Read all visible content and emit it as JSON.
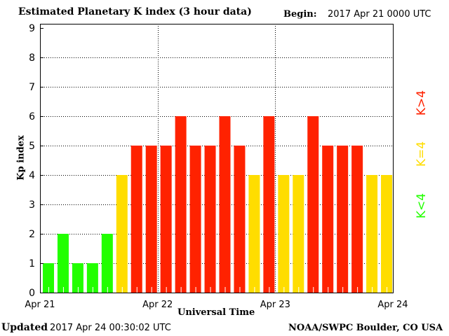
{
  "chart_data": {
    "type": "bar",
    "title": "Estimated Planetary K index (3 hour data)",
    "begin_label": "Begin:",
    "begin_value": "2017 Apr 21 0000 UTC",
    "xlabel": "Universal Time",
    "ylabel": "Kp index",
    "ylim": [
      0,
      9
    ],
    "yticks": [
      "0",
      "1",
      "2",
      "3",
      "4",
      "5",
      "6",
      "7",
      "8",
      "9"
    ],
    "xticks": [
      "Apr 21",
      "Apr 22",
      "Apr 23",
      "Apr 24"
    ],
    "grid": true,
    "values": [
      1,
      2,
      1,
      1,
      2,
      4,
      5,
      5,
      5,
      6,
      5,
      5,
      6,
      5,
      4,
      6,
      4,
      4,
      6,
      5,
      5,
      5,
      4,
      4
    ],
    "colors": {
      "low": "#22ff00",
      "mid": "#ffdd00",
      "high": "#ff2200"
    },
    "legend": [
      {
        "label": "K<4",
        "color": "#22ff00"
      },
      {
        "label": "K=4",
        "color": "#ffdd00"
      },
      {
        "label": "K>4",
        "color": "#ff2200"
      }
    ],
    "legend_placement": "right"
  },
  "footer": {
    "updated_label": "Updated",
    "updated_value": "2017 Apr 24 00:30:02 UTC",
    "credit": "NOAA/SWPC Boulder, CO USA"
  }
}
